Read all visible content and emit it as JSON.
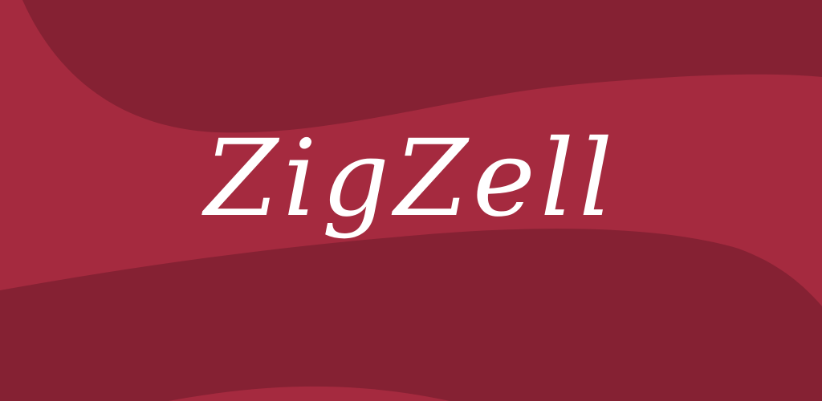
{
  "app_title": "ZigZell",
  "colors": {
    "background": "#a52a3f",
    "wave_dark": "#852133",
    "text": "#ffffff"
  }
}
